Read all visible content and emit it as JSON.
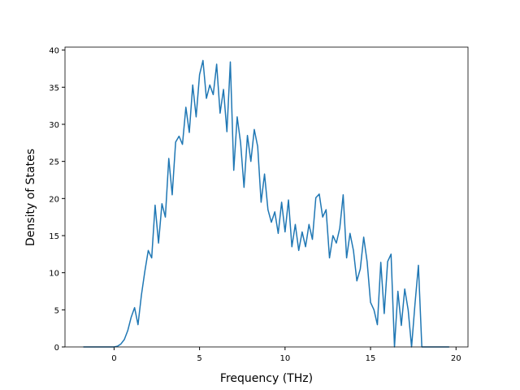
{
  "chart_data": {
    "type": "line",
    "x_label": "Frequency (THz)",
    "y_label": "Density of States",
    "x": [
      -1.8,
      -1.6,
      -1.4,
      -1.2,
      -1.0,
      -0.8,
      -0.6,
      -0.4,
      -0.2,
      0.0,
      0.2,
      0.4,
      0.6,
      0.8,
      1.0,
      1.2,
      1.4,
      1.6,
      1.8,
      2.0,
      2.2,
      2.4,
      2.6,
      2.8,
      3.0,
      3.2,
      3.4,
      3.6,
      3.8,
      4.0,
      4.2,
      4.4,
      4.6,
      4.8,
      5.0,
      5.2,
      5.4,
      5.6,
      5.8,
      6.0,
      6.2,
      6.4,
      6.6,
      6.8,
      7.0,
      7.2,
      7.4,
      7.6,
      7.8,
      8.0,
      8.2,
      8.4,
      8.6,
      8.8,
      9.0,
      9.2,
      9.4,
      9.6,
      9.8,
      10.0,
      10.2,
      10.4,
      10.6,
      10.8,
      11.0,
      11.2,
      11.4,
      11.6,
      11.8,
      12.0,
      12.2,
      12.4,
      12.6,
      12.8,
      13.0,
      13.2,
      13.4,
      13.6,
      13.8,
      14.0,
      14.2,
      14.4,
      14.6,
      14.8,
      15.0,
      15.2,
      15.4,
      15.6,
      15.8,
      16.0,
      16.2,
      16.4,
      16.6,
      16.8,
      17.0,
      17.2,
      17.4,
      17.6,
      17.8,
      18.0,
      18.2,
      18.4,
      18.6,
      18.8,
      19.0,
      19.2,
      19.4,
      19.6
    ],
    "series": [
      {
        "color": "#1f77b4",
        "values": [
          0,
          0,
          0,
          0,
          0,
          0,
          0,
          0,
          0,
          0,
          0.1,
          0.4,
          1.0,
          2.2,
          4.0,
          5.3,
          3.0,
          7.0,
          10.2,
          13,
          12,
          19.1,
          14.0,
          19.3,
          17.5,
          25.4,
          20.5,
          27.6,
          28.4,
          27.3,
          32.3,
          28.9,
          35.3,
          31.0,
          36.7,
          38.6,
          33.5,
          35.3,
          34.0,
          38.1,
          31.5,
          34.7,
          29.0,
          38.4,
          23.8,
          31.0,
          27.5,
          21.5,
          28.5,
          25.0,
          29.3,
          27.0,
          19.5,
          23.3,
          18.5,
          16.8,
          18.2,
          15.3,
          19.5,
          15.5,
          19.8,
          13.5,
          16.5,
          13.0,
          15.5,
          13.5,
          16.5,
          14.5,
          20.1,
          20.6,
          17.5,
          18.5,
          12.0,
          15.0,
          14.0,
          16.0,
          20.5,
          12.0,
          15.3,
          13.0,
          8.9,
          10.5,
          14.8,
          11.5,
          6.0,
          5.0,
          3.0,
          11.4,
          4.5,
          11.5,
          12.5,
          0,
          7.5,
          2.9,
          7.8,
          5.0,
          0,
          5.8,
          11.0,
          0,
          0,
          0,
          0,
          0,
          0,
          0,
          0,
          0
        ]
      }
    ],
    "xlim": [
      -2.87,
      20.7
    ],
    "ylim": [
      0,
      40.4
    ],
    "xticks": [
      0,
      5,
      10,
      15,
      20
    ],
    "yticks": [
      0,
      5,
      10,
      15,
      20,
      25,
      30,
      35,
      40
    ]
  }
}
